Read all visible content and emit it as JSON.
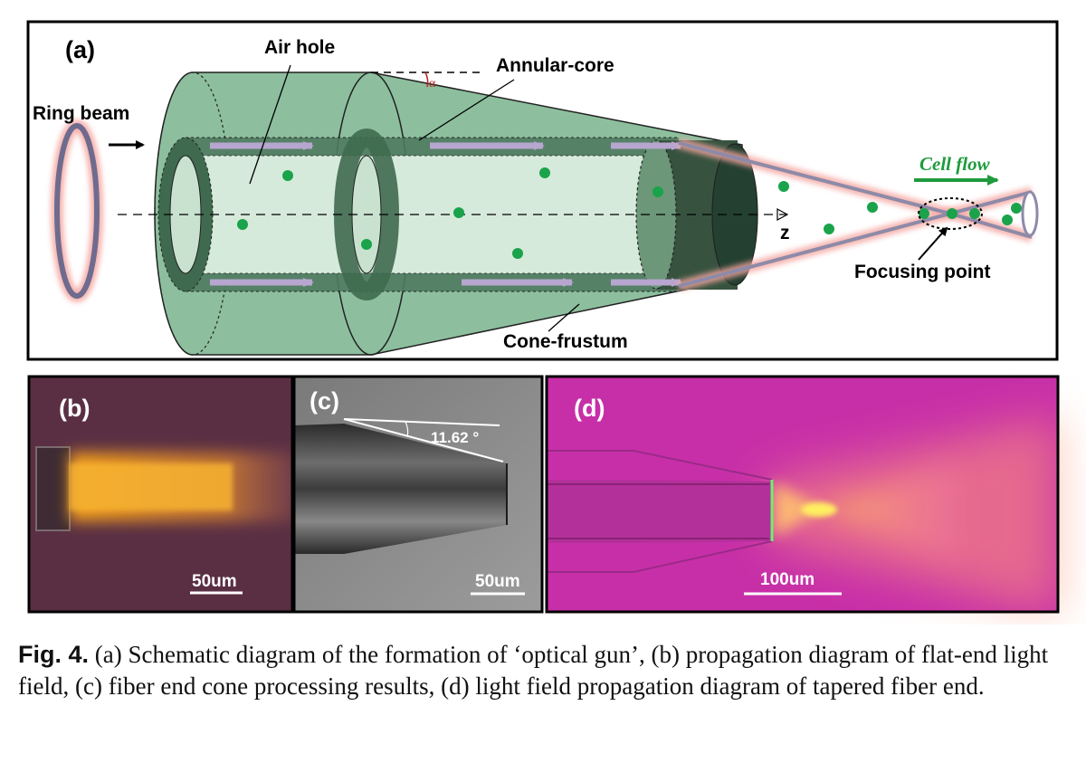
{
  "panel_a": {
    "tag": "(a)",
    "ring_beam": "Ring beam",
    "air_hole": "Air hole",
    "annular_core": "Annular-core",
    "alpha": "α",
    "cell_flow": "Cell flow",
    "z_axis": "z",
    "focusing_point": "Focusing point",
    "cone_frustum": "Cone-frustum"
  },
  "panel_b": {
    "tag": "(b)",
    "scale": "50um"
  },
  "panel_c": {
    "tag": "(c)",
    "angle": "11.62 °",
    "scale": "50um"
  },
  "panel_d": {
    "tag": "(d)",
    "scale": "100um"
  },
  "caption": {
    "label": "Fig. 4.",
    "text": "(a) Schematic diagram of the formation of ‘optical gun’, (b) propagation diagram of flat-end light field, (c) fiber end cone processing results, (d) light field propagation diagram of tapered fiber end."
  },
  "colors": {
    "cone_green": "#8dbf9e",
    "core_dark": "#3f6a4f",
    "airhole": "#d6eadb",
    "dot_green": "#1aa34a",
    "beam_outline": "#6e6b8e",
    "beam_glow": "#f4a6a0",
    "cell_flow": "#1e9b3c",
    "panel_b_bg": "#5a2f44",
    "panel_c_bg": "#8a8a8a",
    "panel_d_bg": "#c72fa8"
  }
}
